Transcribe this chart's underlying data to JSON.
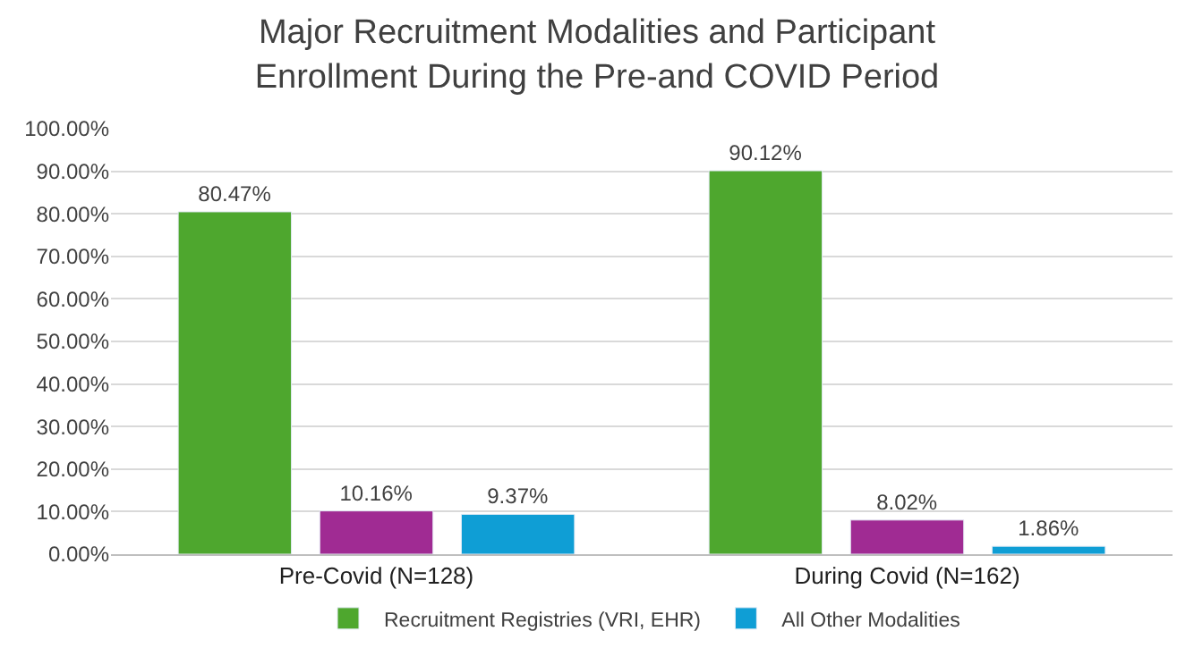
{
  "chart_data": {
    "type": "bar",
    "title": "Major Recruitment Modalities and Participant\nEnrollment During the Pre-and COVID Period",
    "categories": [
      "Pre-Covid (N=128)",
      "During Covid (N=162)"
    ],
    "series": [
      {
        "name": "Recruitment Registries (VRI, EHR)",
        "color": "#4ea72e",
        "values": [
          80.47,
          90.12
        ],
        "value_labels": [
          "80.47%",
          "90.12%"
        ]
      },
      {
        "color": "#a02b93",
        "values": [
          10.16,
          8.02
        ],
        "value_labels": [
          "10.16%",
          "8.02%"
        ]
      },
      {
        "name": "All Other Modalities",
        "color": "#0f9ed5",
        "values": [
          9.37,
          1.86
        ],
        "value_labels": [
          "9.37%",
          "1.86%"
        ]
      }
    ],
    "ylim": [
      0,
      100
    ],
    "yticks": [
      {
        "value": 0,
        "label": "0.00%"
      },
      {
        "value": 10,
        "label": "10.00%"
      },
      {
        "value": 20,
        "label": "20.00%"
      },
      {
        "value": 30,
        "label": "30.00%"
      },
      {
        "value": 40,
        "label": "40.00%"
      },
      {
        "value": 50,
        "label": "50.00%"
      },
      {
        "value": 60,
        "label": "60.00%"
      },
      {
        "value": 70,
        "label": "70.00%"
      },
      {
        "value": 80,
        "label": "80.00%"
      },
      {
        "value": 90,
        "label": "90.00%"
      },
      {
        "value": 100,
        "label": "100.00%"
      }
    ],
    "grid": "y",
    "legend": "bottom"
  }
}
